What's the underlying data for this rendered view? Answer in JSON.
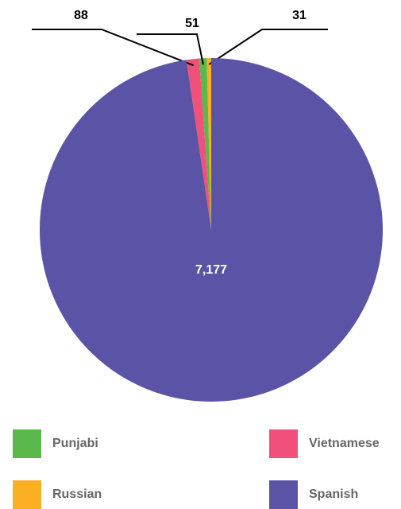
{
  "chart_data": {
    "type": "pie",
    "series": [
      {
        "name": "Punjabi",
        "color": "#5bb84a",
        "values": [
          51
        ],
        "value_labels": [
          "51"
        ]
      },
      {
        "name": "Vietnamese",
        "color": "#f0507a",
        "values": [
          88
        ],
        "value_labels": [
          "88"
        ]
      },
      {
        "name": "Russian",
        "color": "#fbb023",
        "values": [
          31
        ],
        "value_labels": [
          "31"
        ]
      },
      {
        "name": "Spanish",
        "color": "#5b54a6",
        "values": [
          7177
        ],
        "value_labels": [
          "7,177"
        ]
      }
    ]
  }
}
